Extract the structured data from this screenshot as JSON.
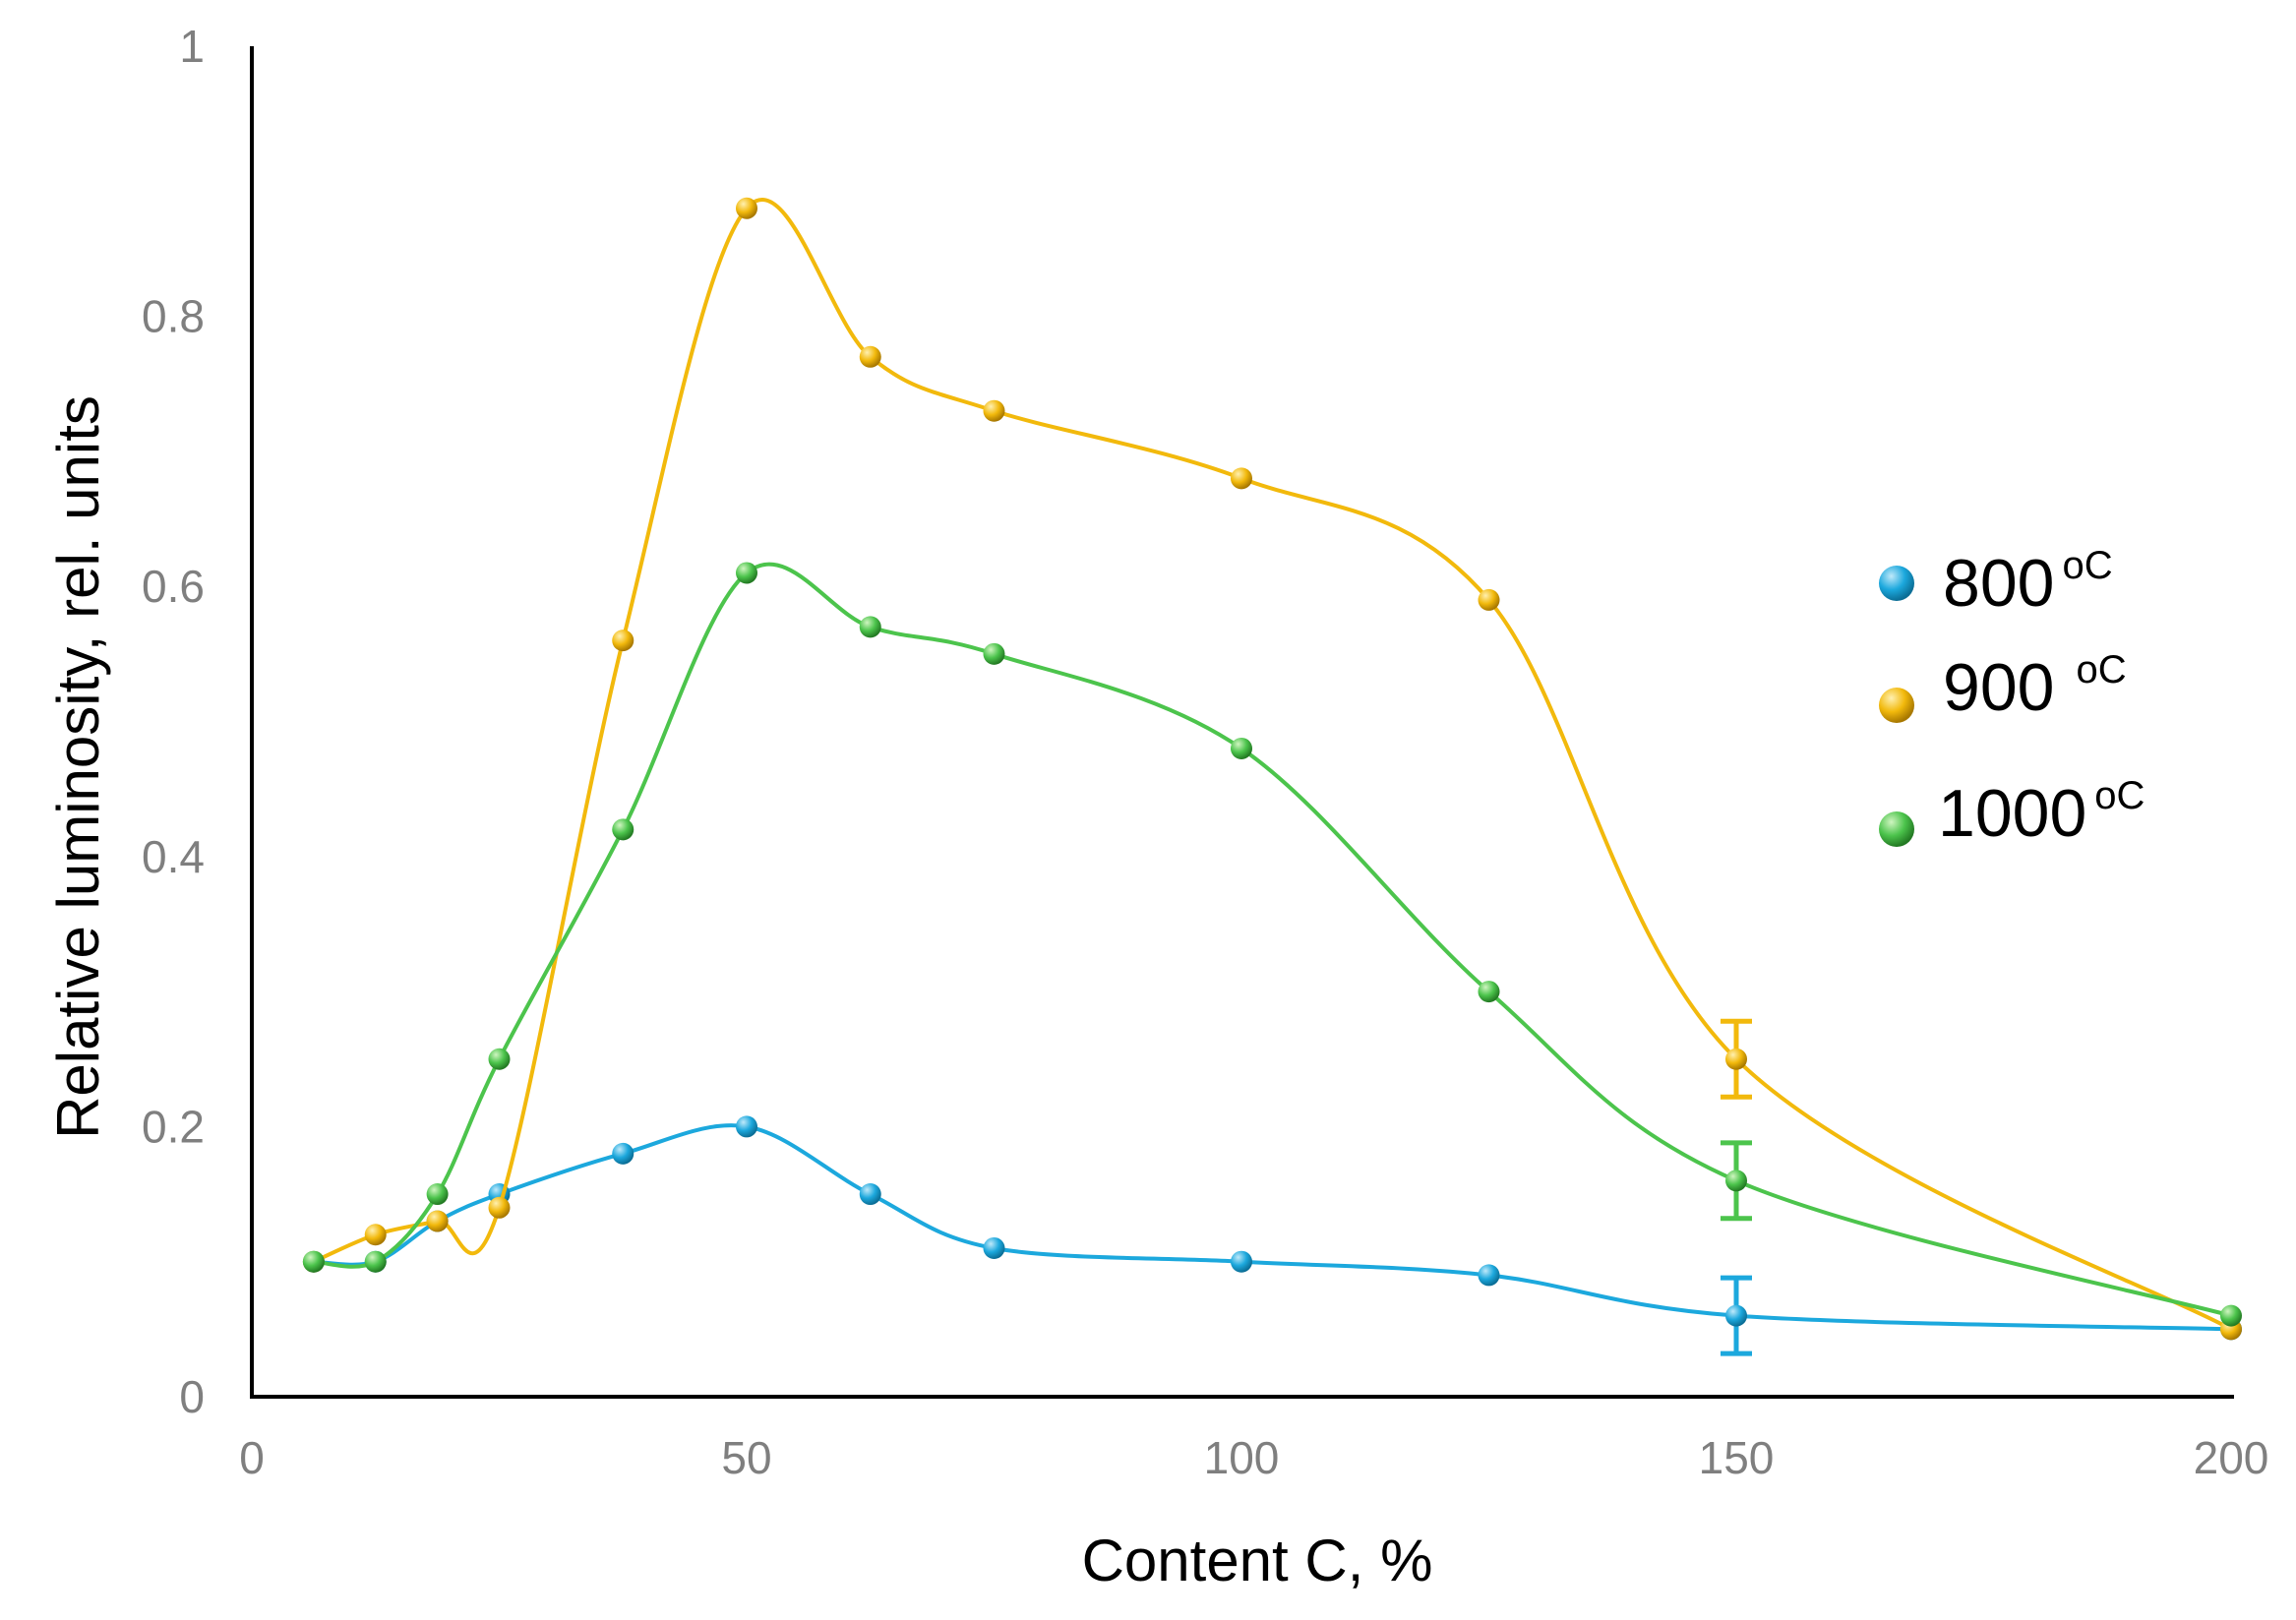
{
  "chart_data": {
    "type": "line",
    "title": "",
    "xlabel": "Content C, %",
    "ylabel": "Relative luminosity, rel. units",
    "xlim": [
      0,
      200
    ],
    "ylim": [
      0,
      1
    ],
    "x_ticks": [
      0,
      50,
      100,
      150,
      200
    ],
    "y_ticks": [
      0,
      0.2,
      0.4,
      0.6,
      0.8,
      1
    ],
    "x_tick_labels": [
      "0",
      "50",
      "100",
      "150",
      "200"
    ],
    "y_tick_labels": [
      "0",
      "0.2",
      "0.4",
      "0.6",
      "0.8",
      "1"
    ],
    "grid": false,
    "legend_position": "right",
    "series": [
      {
        "name": "800 ºC",
        "legend_value": "800",
        "legend_unit": "oC",
        "color": "#1ca8dd",
        "points": [
          [
            6.25,
            0.1
          ],
          [
            12.5,
            0.1
          ],
          [
            18.75,
            0.13
          ],
          [
            25,
            0.15
          ],
          [
            37.5,
            0.18
          ],
          [
            50,
            0.2
          ],
          [
            62.5,
            0.15
          ],
          [
            75,
            0.11
          ],
          [
            100,
            0.1
          ],
          [
            125,
            0.09
          ],
          [
            150,
            0.06
          ],
          [
            200,
            0.05
          ]
        ],
        "error_bars": [
          {
            "x": 150,
            "y": 0.06,
            "err": 0.028
          }
        ]
      },
      {
        "name": "900 ºC",
        "legend_value": "900",
        "legend_unit": "oC",
        "color": "#f2b90c",
        "points": [
          [
            6.25,
            0.1
          ],
          [
            12.5,
            0.12
          ],
          [
            18.75,
            0.13
          ],
          [
            25,
            0.14
          ],
          [
            37.5,
            0.56
          ],
          [
            50,
            0.88
          ],
          [
            62.5,
            0.77
          ],
          [
            75,
            0.73
          ],
          [
            100,
            0.68
          ],
          [
            125,
            0.59
          ],
          [
            150,
            0.25
          ],
          [
            200,
            0.05
          ]
        ],
        "error_bars": [
          {
            "x": 150,
            "y": 0.25,
            "err": 0.028
          }
        ]
      },
      {
        "name": "1000 ºC",
        "legend_value": "1000",
        "legend_unit": "oC",
        "color": "#4cc44c",
        "points": [
          [
            6.25,
            0.1
          ],
          [
            12.5,
            0.1
          ],
          [
            18.75,
            0.15
          ],
          [
            25,
            0.25
          ],
          [
            37.5,
            0.42
          ],
          [
            50,
            0.61
          ],
          [
            62.5,
            0.57
          ],
          [
            75,
            0.55
          ],
          [
            100,
            0.48
          ],
          [
            125,
            0.3
          ],
          [
            150,
            0.16
          ],
          [
            200,
            0.06
          ]
        ],
        "error_bars": [
          {
            "x": 150,
            "y": 0.16,
            "err": 0.028
          }
        ]
      }
    ]
  }
}
